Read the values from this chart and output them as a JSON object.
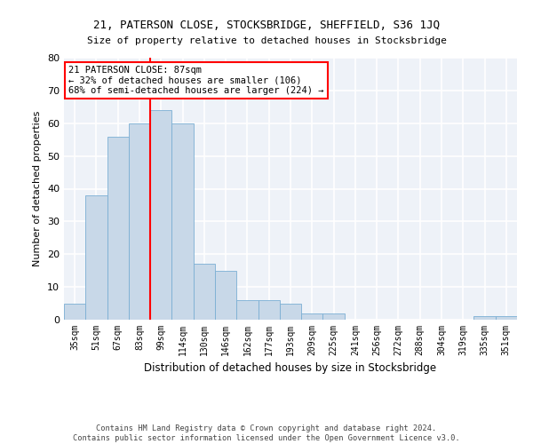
{
  "title1": "21, PATERSON CLOSE, STOCKSBRIDGE, SHEFFIELD, S36 1JQ",
  "title2": "Size of property relative to detached houses in Stocksbridge",
  "xlabel": "Distribution of detached houses by size in Stocksbridge",
  "ylabel": "Number of detached properties",
  "footer1": "Contains HM Land Registry data © Crown copyright and database right 2024.",
  "footer2": "Contains public sector information licensed under the Open Government Licence v3.0.",
  "bins": [
    "35sqm",
    "51sqm",
    "67sqm",
    "83sqm",
    "99sqm",
    "114sqm",
    "130sqm",
    "146sqm",
    "162sqm",
    "177sqm",
    "193sqm",
    "209sqm",
    "225sqm",
    "241sqm",
    "256sqm",
    "272sqm",
    "288sqm",
    "304sqm",
    "319sqm",
    "335sqm",
    "351sqm"
  ],
  "values": [
    5,
    38,
    56,
    60,
    64,
    60,
    17,
    15,
    6,
    6,
    5,
    2,
    2,
    0,
    0,
    0,
    0,
    0,
    0,
    1,
    1
  ],
  "bar_color": "#c8d8e8",
  "bar_edge_color": "#7bafd4",
  "vline_x": 3.5,
  "vline_color": "red",
  "ylim": [
    0,
    80
  ],
  "yticks": [
    0,
    10,
    20,
    30,
    40,
    50,
    60,
    70,
    80
  ],
  "annotation_text": "21 PATERSON CLOSE: 87sqm\n← 32% of detached houses are smaller (106)\n68% of semi-detached houses are larger (224) →",
  "annotation_box_color": "white",
  "annotation_box_edge_color": "red",
  "bg_color": "#eef2f8",
  "grid_color": "white"
}
